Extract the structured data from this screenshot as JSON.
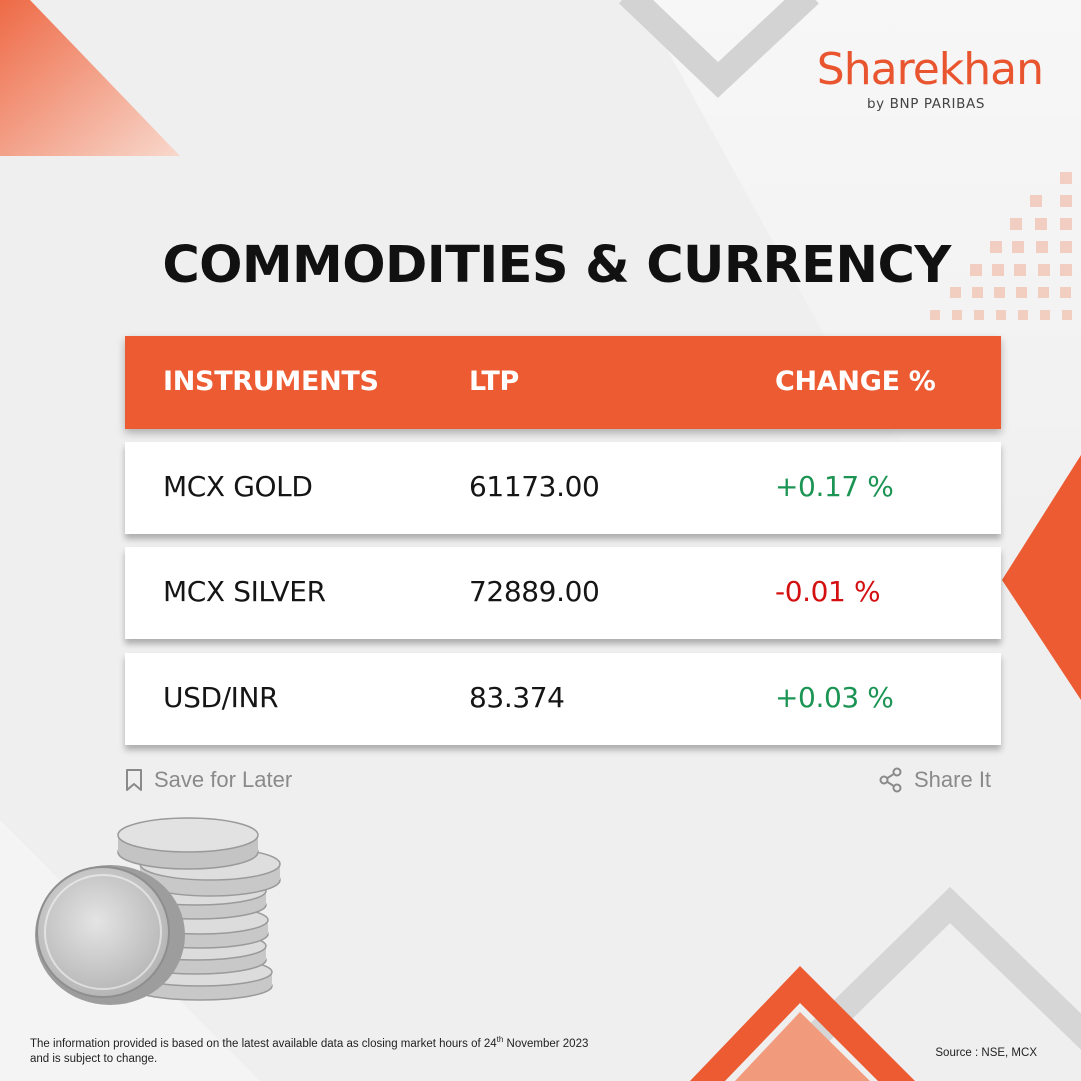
{
  "brand": {
    "name": "Sharekhan",
    "sub": "by BNP PARIBAS"
  },
  "title": "COMMODITIES & CURRENCY",
  "table": {
    "headers": [
      "INSTRUMENTS",
      "LTP",
      "CHANGE %"
    ],
    "rows": [
      {
        "instrument": "MCX GOLD",
        "ltp": "61173.00",
        "change": "+0.17 %",
        "direction": "up"
      },
      {
        "instrument": "MCX SILVER",
        "ltp": "72889.00",
        "change": "-0.01 %",
        "direction": "down"
      },
      {
        "instrument": "USD/INR",
        "ltp": "83.374",
        "change": "+0.03 %",
        "direction": "up"
      }
    ]
  },
  "actions": {
    "save": "Save for Later",
    "share": "Share It"
  },
  "footnote": {
    "line1_pre": "The information provided is based on the latest available data as closing market hours of 24",
    "line1_sup": "th",
    "line1_post": " November 2023",
    "line2": "and is subject to change."
  },
  "source": "Source : NSE, MCX",
  "colors": {
    "accent": "#ec5b31",
    "positive": "#1c9454",
    "negative": "#d40f0f"
  },
  "icons": {
    "save": "bookmark-icon",
    "share": "share-icon"
  }
}
